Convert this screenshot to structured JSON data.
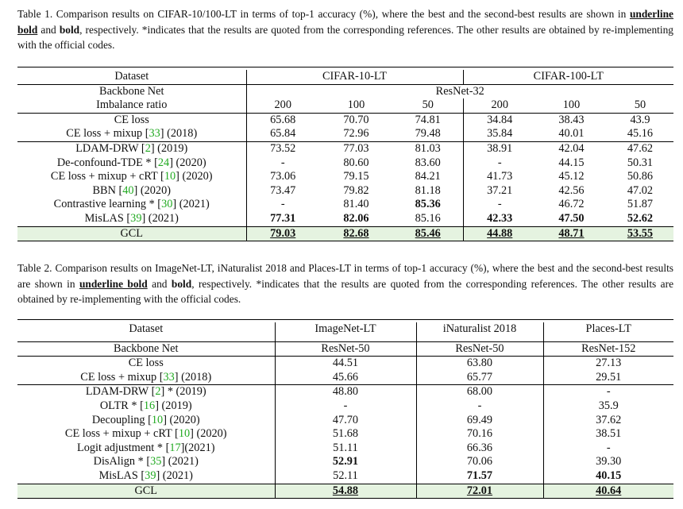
{
  "table1": {
    "caption": {
      "p1": "Table 1.  Comparison results on CIFAR-10/100-LT in terms of top-1 accuracy (%), where the best and the second-best results are shown in ",
      "ub": "underline bold",
      "p2": " and ",
      "b": "bold",
      "p3": ", respectively. *indicates that the results are quoted from the corresponding references. The other results are obtained by re-implementing with the official codes."
    },
    "header": {
      "dataset": "Dataset",
      "group1": "CIFAR-10-LT",
      "group2": "CIFAR-100-LT",
      "backbone_label": "Backbone Net",
      "backbone": "ResNet-32",
      "imbalance_label": "Imbalance ratio",
      "ratios": [
        "200",
        "100",
        "50",
        "200",
        "100",
        "50"
      ]
    },
    "rows": [
      {
        "pre": "CE loss",
        "ref": "",
        "post": "",
        "values": [
          "65.68",
          "70.70",
          "74.81",
          "34.84",
          "38.43",
          "43.9"
        ]
      },
      {
        "pre": "CE loss + mixup [",
        "ref": "33",
        "post": "] (2018)",
        "values": [
          "65.84",
          "72.96",
          "79.48",
          "35.84",
          "40.01",
          "45.16"
        ]
      },
      {
        "pre": "LDAM-DRW [",
        "ref": "2",
        "post": "] (2019)",
        "values": [
          "73.52",
          "77.03",
          "81.03",
          "38.91",
          "42.04",
          "47.62"
        ]
      },
      {
        "pre": "De-confound-TDE * [",
        "ref": "24",
        "post": "] (2020)",
        "values": [
          "-",
          "80.60",
          "83.60",
          "-",
          "44.15",
          "50.31"
        ]
      },
      {
        "pre": "CE loss + mixup + cRT [",
        "ref": "10",
        "post": "] (2020)",
        "values": [
          "73.06",
          "79.15",
          "84.21",
          "41.73",
          "45.12",
          "50.86"
        ]
      },
      {
        "pre": "BBN [",
        "ref": "40",
        "post": "] (2020)",
        "values": [
          "73.47",
          "79.82",
          "81.18",
          "37.21",
          "42.56",
          "47.02"
        ]
      },
      {
        "pre": "Contrastive learning * [",
        "ref": "30",
        "post": "] (2021)",
        "values": [
          "-",
          "81.40",
          "85.36",
          "-",
          "46.72",
          "51.87"
        ]
      },
      {
        "pre": "MisLAS [",
        "ref": "39",
        "post": "] (2021)",
        "values": [
          "77.31",
          "82.06",
          "85.16",
          "42.33",
          "47.50",
          "52.62"
        ]
      },
      {
        "pre": "GCL",
        "ref": "",
        "post": "",
        "values": [
          "79.03",
          "82.68",
          "85.46",
          "44.88",
          "48.71",
          "53.55"
        ]
      }
    ]
  },
  "table2": {
    "caption": {
      "p1": "Table 2.  Comparison results on ImageNet-LT, iNaturalist 2018 and Places-LT in terms of top-1 accuracy (%), where the best and the second-best results are shown in ",
      "ub": "underline bold",
      "p2": " and ",
      "b": "bold",
      "p3": ", respectively. *indicates that the results are quoted from the corresponding references. The other results are obtained by re-implementing with the official codes."
    },
    "header": {
      "dataset": "Dataset",
      "cols": [
        "ImageNet-LT",
        "iNaturalist 2018",
        "Places-LT"
      ],
      "backbone_label": "Backbone Net",
      "backbones": [
        "ResNet-50",
        "ResNet-50",
        "ResNet-152"
      ]
    },
    "rows": [
      {
        "pre": "CE loss",
        "ref": "",
        "post": "",
        "values": [
          "44.51",
          "63.80",
          "27.13"
        ]
      },
      {
        "pre": "CE loss + mixup [",
        "ref": "33",
        "post": "] (2018)",
        "values": [
          "45.66",
          "65.77",
          "29.51"
        ]
      },
      {
        "pre": "LDAM-DRW [",
        "ref": "2",
        "post": "] * (2019)",
        "values": [
          "48.80",
          "68.00",
          "-"
        ]
      },
      {
        "pre": "OLTR * [",
        "ref": "16",
        "post": "] (2019)",
        "values": [
          "-",
          "-",
          "35.9"
        ]
      },
      {
        "pre": "Decoupling [",
        "ref": "10",
        "post": "] (2020)",
        "values": [
          "47.70",
          "69.49",
          "37.62"
        ]
      },
      {
        "pre": "CE loss + mixup + cRT [",
        "ref": "10",
        "post": "] (2020)",
        "values": [
          "51.68",
          "70.16",
          "38.51"
        ]
      },
      {
        "pre": "Logit adjustment * [",
        "ref": "17",
        "post": "](2021)",
        "values": [
          "51.11",
          "66.36",
          "-"
        ]
      },
      {
        "pre": "DisAlign * [",
        "ref": "35",
        "post": "] (2021)",
        "values": [
          "52.91",
          "70.06",
          "39.30"
        ]
      },
      {
        "pre": "MisLAS [",
        "ref": "39",
        "post": "] (2021)",
        "values": [
          "52.11",
          "71.57",
          "40.15"
        ]
      },
      {
        "pre": "GCL",
        "ref": "",
        "post": "",
        "values": [
          "54.88",
          "72.01",
          "40.64"
        ]
      }
    ]
  }
}
